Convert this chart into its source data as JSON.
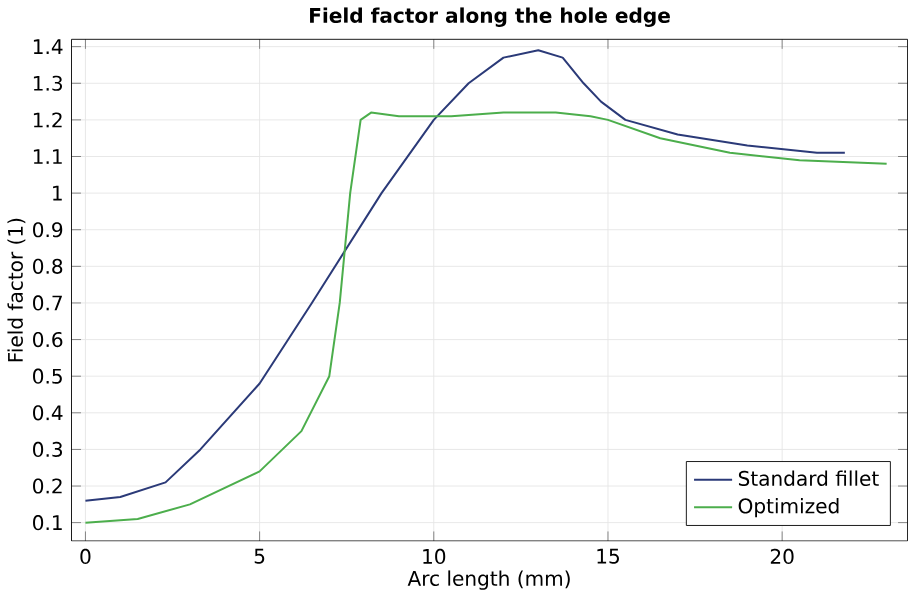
{
  "chart_data": {
    "type": "line",
    "title": "Field factor along the hole edge",
    "xlabel": "Arc length (mm)",
    "ylabel": "Field factor (1)",
    "xlim": [
      -0.4,
      23.6
    ],
    "ylim": [
      0.05,
      1.42
    ],
    "xticks": [
      0,
      5,
      10,
      15,
      20
    ],
    "yticks": [
      0.1,
      0.2,
      0.3,
      0.4,
      0.5,
      0.6,
      0.7,
      0.8,
      0.9,
      1,
      1.1,
      1.2,
      1.3,
      1.4
    ],
    "grid": true,
    "legend": "bottom right",
    "marker": "none",
    "line_style": "solid",
    "series": [
      {
        "name": "Standard fillet",
        "color": "#2b3a78",
        "x": [
          0,
          1,
          2.3,
          3.3,
          5,
          6.5,
          7.5,
          8.5,
          10,
          11,
          12,
          13,
          13.7,
          14.3,
          14.8,
          15.5,
          17,
          19,
          21,
          21.8
        ],
        "values": [
          0.16,
          0.17,
          0.21,
          0.3,
          0.48,
          0.7,
          0.85,
          1.0,
          1.2,
          1.3,
          1.37,
          1.39,
          1.37,
          1.3,
          1.25,
          1.2,
          1.16,
          1.13,
          1.11,
          1.11
        ]
      },
      {
        "name": "Optimized",
        "color": "#4cae4c",
        "x": [
          0,
          1.5,
          3,
          5,
          6.2,
          7,
          7.3,
          7.6,
          7.9,
          8.2,
          9,
          10.5,
          12,
          13.5,
          14.5,
          15,
          16.5,
          18.5,
          20.5,
          23
        ],
        "values": [
          0.1,
          0.11,
          0.15,
          0.24,
          0.35,
          0.5,
          0.7,
          1.0,
          1.2,
          1.22,
          1.21,
          1.21,
          1.22,
          1.22,
          1.21,
          1.2,
          1.15,
          1.11,
          1.09,
          1.08
        ]
      }
    ]
  }
}
